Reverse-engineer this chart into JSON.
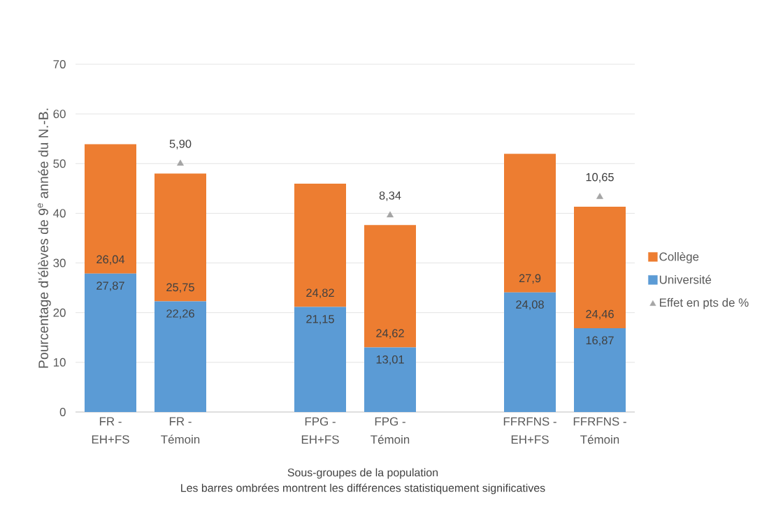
{
  "chart_data": {
    "type": "bar",
    "stacked": true,
    "xlabel": "Sous-groupes de la population",
    "ylabel": "Pourcentage d’élèves de 9$^{e}$ année du N.-B.",
    "annotations": [
      "Les barres ombrées montrent les différences statistiquement significatives",
      {
        "text": "5,90",
        "x": "FR - Témoin",
        "y": 50
      },
      {
        "text": "8,34",
        "x": "FPG - Témoin",
        "y": 39.6
      },
      {
        "text": "10,65",
        "x": "FFRFNS - Témoin",
        "y": 43.3
      }
    ],
    "categories": [
      "FR - EH+FS",
      "FR - Témoin",
      null,
      "FPG - EH+FS",
      "FPG - Témoin",
      null,
      "FFRFNS - EH+FS",
      "FFRFNS - Témoin"
    ],
    "series": [
      {
        "name": "Université",
        "color": "#5b9bd5",
        "values": [
          27.87,
          22.26,
          null,
          21.15,
          13.01,
          null,
          24.08,
          16.87
        ],
        "value_labels": [
          "27,87",
          "22,26",
          null,
          "21,15",
          "13,01",
          null,
          "24,08",
          "16,87"
        ]
      },
      {
        "name": "Collège",
        "color": "#ed7d31",
        "values": [
          26.04,
          25.75,
          null,
          24.82,
          24.62,
          null,
          27.9,
          24.46
        ],
        "value_labels": [
          "26,04",
          "25,75",
          null,
          "24,82",
          "24,62",
          null,
          "27,9",
          "24,46"
        ]
      },
      {
        "name": "Effet en pts de %",
        "type": "scatter",
        "marker": "triangle",
        "color": "#a5a5a5",
        "values": [
          null,
          50,
          null,
          null,
          39.6,
          null,
          null,
          43.3
        ]
      }
    ],
    "ylim": [
      0,
      70
    ],
    "yticks": [
      0,
      10,
      20,
      30,
      40,
      50,
      60,
      70
    ],
    "grid": "y",
    "legend": "right"
  }
}
